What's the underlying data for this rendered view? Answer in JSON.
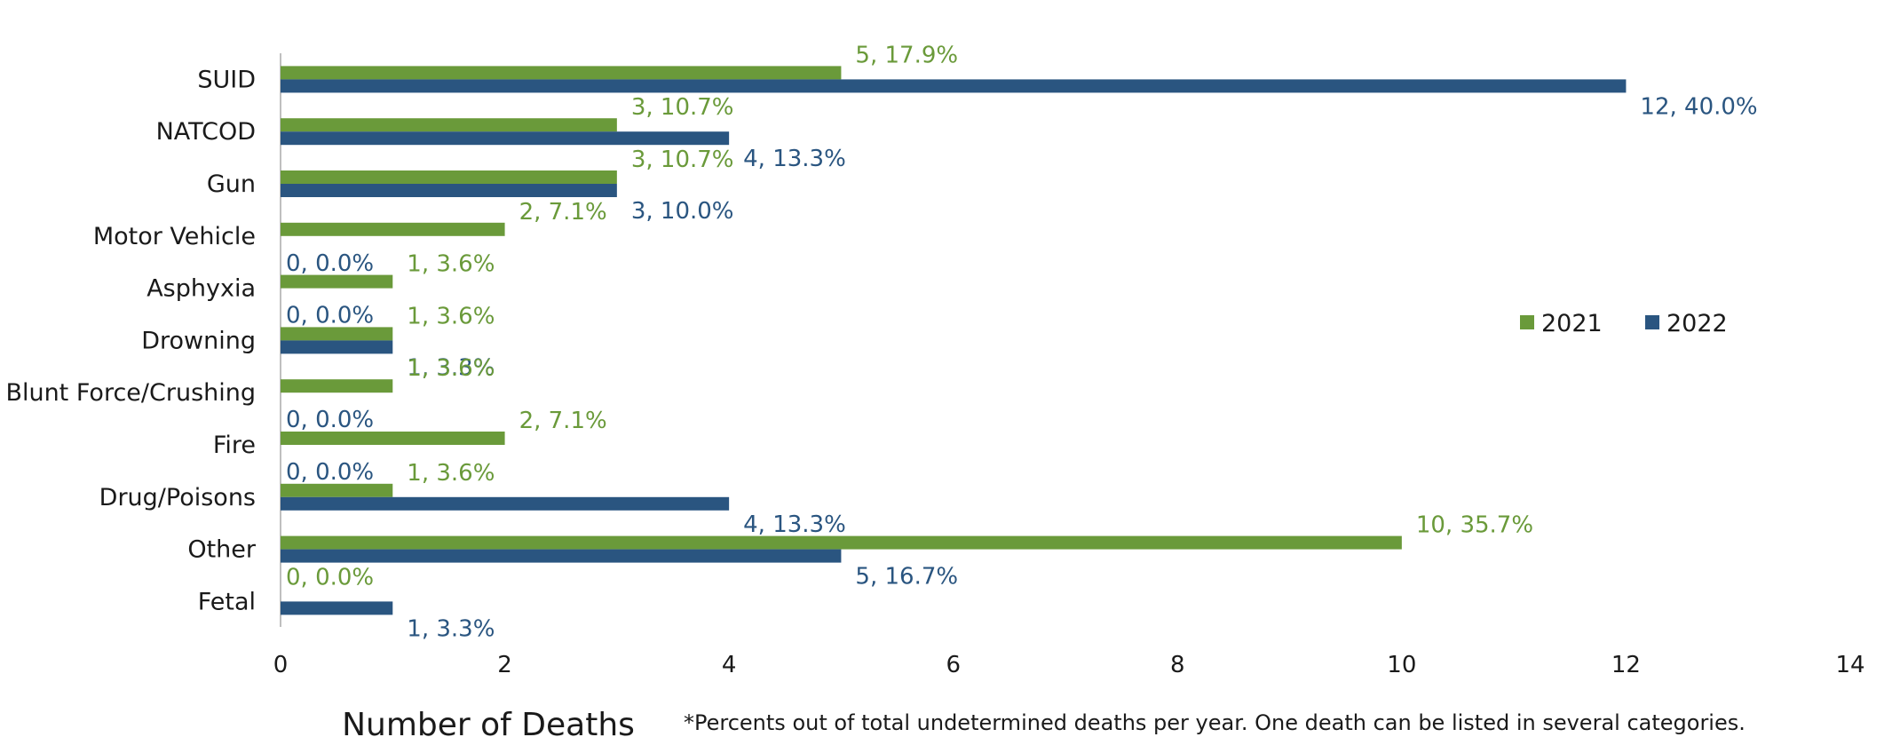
{
  "chart_data": {
    "type": "bar",
    "orientation": "horizontal",
    "categories": [
      "SUID",
      "NATCOD",
      "Gun",
      "Motor Vehicle",
      "Asphyxia",
      "Drowning",
      "Blunt Force/Crushing",
      "Fire",
      "Drug/Poisons",
      "Other",
      "Fetal"
    ],
    "series": [
      {
        "name": "2021",
        "color": "#6a9a3a",
        "values": [
          5,
          3,
          3,
          2,
          1,
          1,
          1,
          2,
          1,
          10,
          0
        ],
        "labels": [
          "5, 17.9%",
          "3, 10.7%",
          "3, 10.7%",
          "2, 7.1%",
          "1, 3.6%",
          "1, 3.6%",
          "1, 3.6%",
          "2, 7.1%",
          "1, 3.6%",
          "10, 35.7%",
          "0, 0.0%"
        ]
      },
      {
        "name": "2022",
        "color": "#2a5580",
        "values": [
          12,
          4,
          3,
          0,
          0,
          1,
          0,
          0,
          4,
          5,
          1
        ],
        "labels": [
          "12, 40.0%",
          "4, 13.3%",
          "3, 10.0%",
          "0, 0.0%",
          "0, 0.0%",
          "1, 3.3%",
          "0, 0.0%",
          "0, 0.0%",
          "4, 13.3%",
          "5, 16.7%",
          "1, 3.3%"
        ]
      }
    ],
    "xlabel": "Number of Deaths",
    "ylabel": "",
    "xlim": [
      0,
      14
    ],
    "xticks": [
      0,
      2,
      4,
      6,
      8,
      10,
      12,
      14
    ],
    "legend_position": "right",
    "grid": false,
    "footnote": "*Percents out of total undetermined deaths per year. One death can be listed in several categories."
  }
}
